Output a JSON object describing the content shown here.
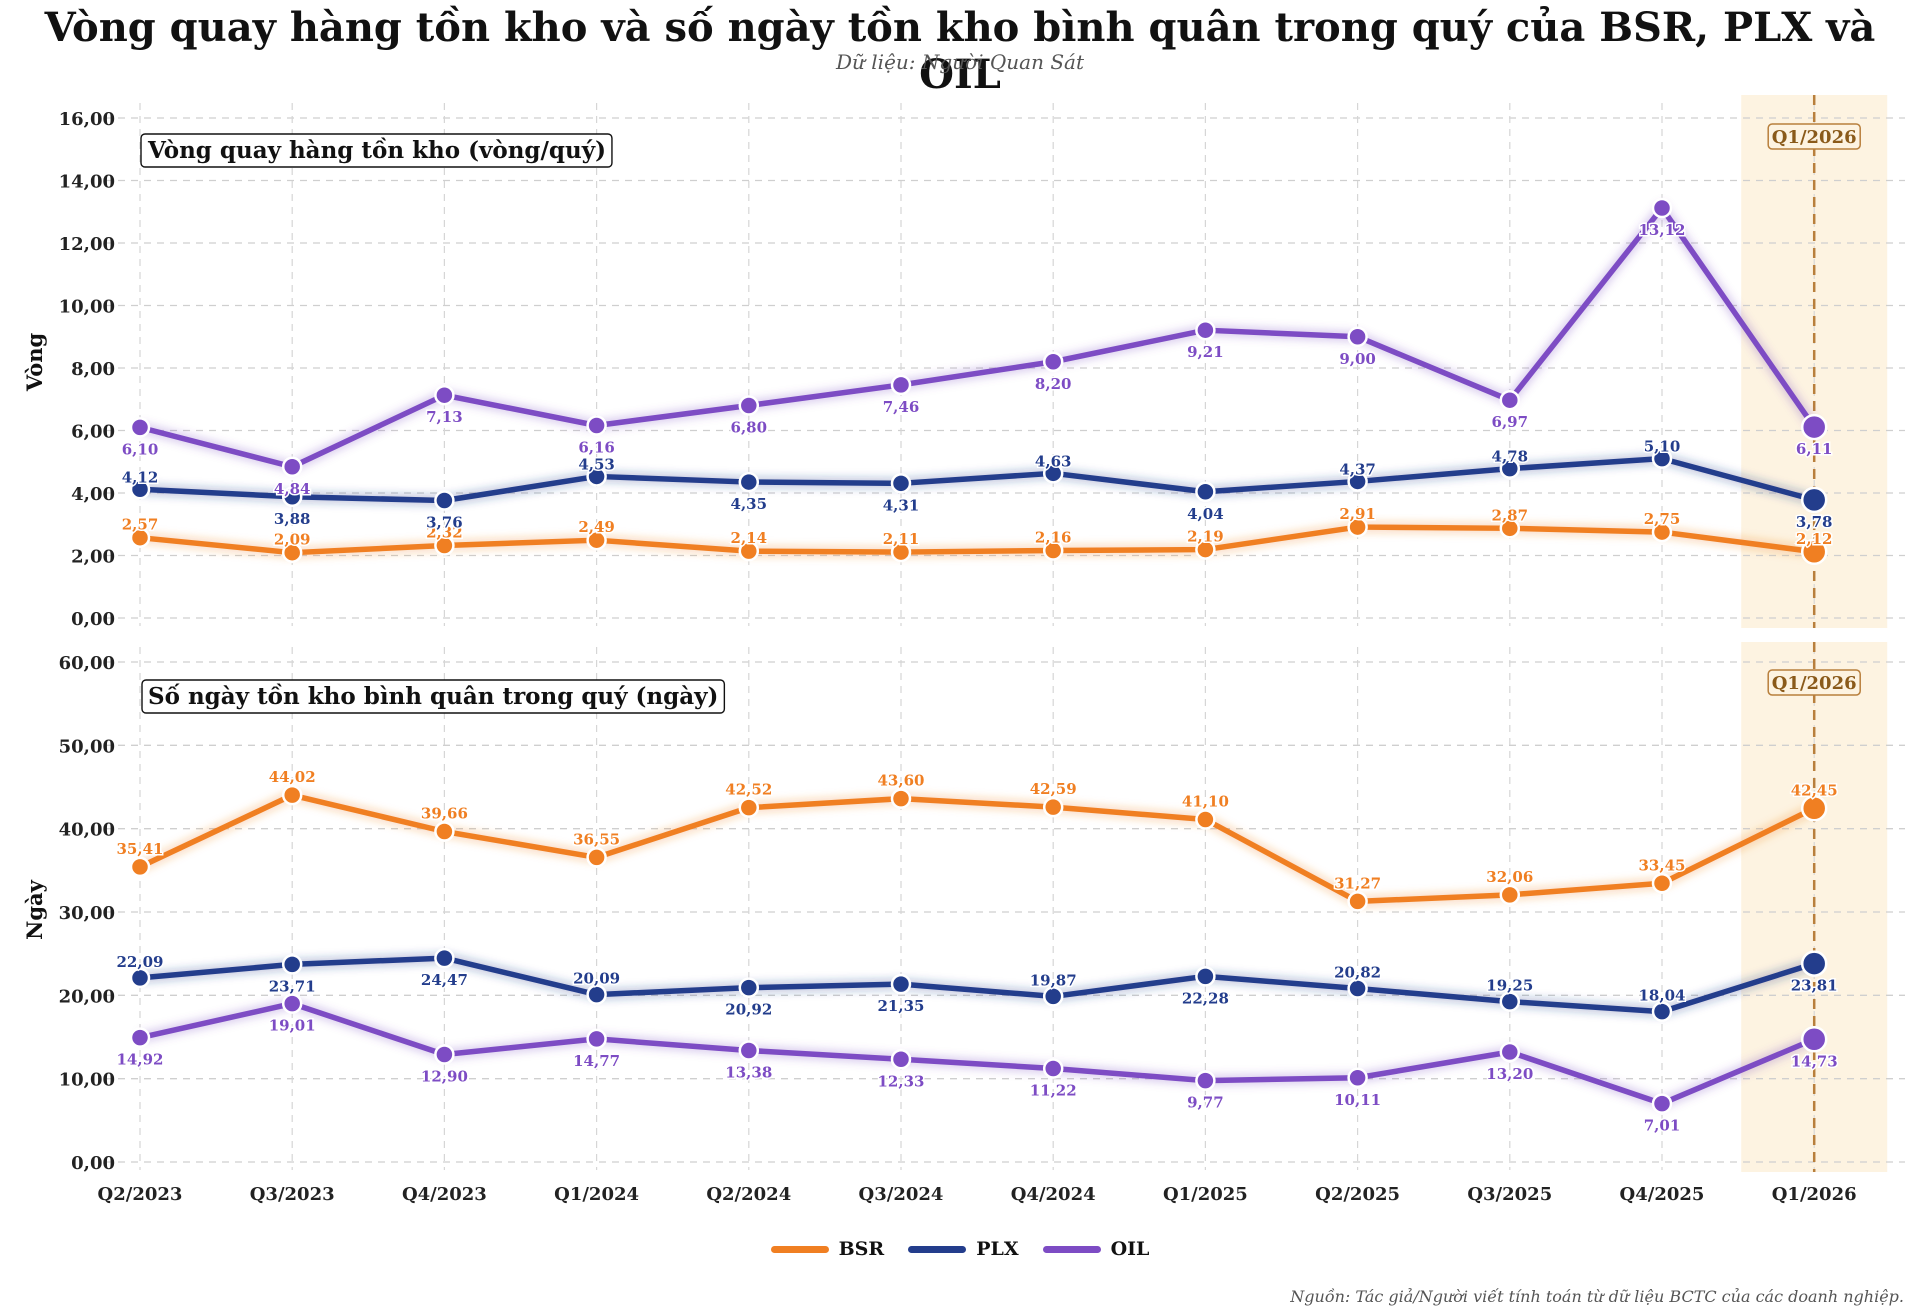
{
  "title": "Vòng quay hàng tồn kho và số ngày tồn kho bình quân trong quý của BSR, PLX và OIL",
  "subtitle": "Dữ liệu: Người Quan Sát",
  "source": "Nguồn: Tác giả/Người viết tính toán từ dữ liệu BCTC của các doanh nghiệp.",
  "colors": {
    "BSR": "#f07f22",
    "PLX": "#233d8c",
    "OIL": "#7d4cc4",
    "highlight_bg": "#fdf3e1",
    "highlight_line": "#b87f3c",
    "highlight_text": "#8a5a1a"
  },
  "legend": [
    {
      "name": "BSR",
      "color": "#f07f22"
    },
    {
      "name": "PLX",
      "color": "#233d8c"
    },
    {
      "name": "OIL",
      "color": "#7d4cc4"
    }
  ],
  "chart_data": [
    {
      "type": "line",
      "panel_label": "Vòng quay hàng tồn kho (vòng/quý)",
      "ylabel": "Vòng",
      "ylim": [
        0,
        16
      ],
      "yticks": [
        "0,00",
        "2,00",
        "4,00",
        "6,00",
        "8,00",
        "10,00",
        "12,00",
        "14,00",
        "16,00"
      ],
      "highlight_label": "Q1/2026",
      "categories": [
        "Q2/2023",
        "Q3/2023",
        "Q4/2023",
        "Q1/2024",
        "Q2/2024",
        "Q3/2024",
        "Q4/2024",
        "Q1/2025",
        "Q2/2025",
        "Q3/2025",
        "Q4/2025",
        "Q1/2026"
      ],
      "series": [
        {
          "name": "BSR",
          "values": [
            2.57,
            2.09,
            2.32,
            2.49,
            2.14,
            2.11,
            2.16,
            2.19,
            2.91,
            2.87,
            2.75,
            2.12
          ],
          "labels": [
            "2,57",
            "2,09",
            "2,32",
            "2,49",
            "2,14",
            "2,11",
            "2,16",
            "2,19",
            "2,91",
            "2,87",
            "2,75",
            "2,12"
          ]
        },
        {
          "name": "PLX",
          "values": [
            4.12,
            3.88,
            3.76,
            4.53,
            4.35,
            4.31,
            4.63,
            4.04,
            4.37,
            4.78,
            5.1,
            3.78
          ],
          "labels": [
            "4,12",
            "3,88",
            "3,76",
            "4,53",
            "4,35",
            "4,31",
            "4,63",
            "4,04",
            "4,37",
            "4,78",
            "5,10",
            "3,78"
          ]
        },
        {
          "name": "OIL",
          "values": [
            6.1,
            4.84,
            7.13,
            6.16,
            6.8,
            7.46,
            8.2,
            9.21,
            9.0,
            6.97,
            13.12,
            6.11
          ],
          "labels": [
            "6,10",
            "4,84",
            "7,13",
            "6,16",
            "6,80",
            "7,46",
            "8,20",
            "9,21",
            "9,00",
            "6,97",
            "13,12",
            "6,11"
          ]
        }
      ]
    },
    {
      "type": "line",
      "panel_label": "Số ngày tồn kho bình quân trong quý (ngày)",
      "ylabel": "Ngày",
      "ylim": [
        0,
        60
      ],
      "yticks": [
        "0,00",
        "10,00",
        "20,00",
        "30,00",
        "40,00",
        "50,00",
        "60,00"
      ],
      "highlight_label": "Q1/2026",
      "categories": [
        "Q2/2023",
        "Q3/2023",
        "Q4/2023",
        "Q1/2024",
        "Q2/2024",
        "Q3/2024",
        "Q4/2024",
        "Q1/2025",
        "Q2/2025",
        "Q3/2025",
        "Q4/2025",
        "Q1/2026"
      ],
      "series": [
        {
          "name": "BSR",
          "values": [
            35.41,
            44.02,
            39.66,
            36.55,
            42.52,
            43.6,
            42.59,
            41.1,
            31.27,
            32.06,
            33.45,
            42.45
          ],
          "labels": [
            "35,41",
            "44,02",
            "39,66",
            "36,55",
            "42,52",
            "43,60",
            "42,59",
            "41,10",
            "31,27",
            "32,06",
            "33,45",
            "42,45"
          ]
        },
        {
          "name": "PLX",
          "values": [
            22.09,
            23.71,
            24.47,
            20.09,
            20.92,
            21.35,
            19.87,
            22.28,
            20.82,
            19.25,
            18.04,
            23.81
          ],
          "labels": [
            "22,09",
            "23,71",
            "24,47",
            "20,09",
            "20,92",
            "21,35",
            "19,87",
            "22,28",
            "20,82",
            "19,25",
            "18,04",
            "23,81"
          ]
        },
        {
          "name": "OIL",
          "values": [
            14.92,
            19.01,
            12.9,
            14.77,
            13.38,
            12.33,
            11.22,
            9.77,
            10.11,
            13.2,
            7.01,
            14.73
          ],
          "labels": [
            "14,92",
            "19,01",
            "12,90",
            "14,77",
            "13,38",
            "12,33",
            "11,22",
            "9,77",
            "10,11",
            "13,20",
            "7,01",
            "14,73"
          ]
        }
      ]
    }
  ]
}
